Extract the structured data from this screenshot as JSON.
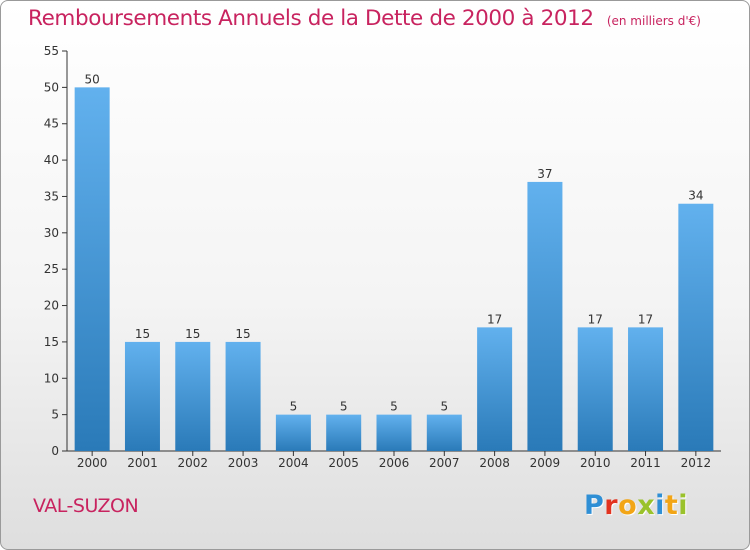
{
  "header": {
    "title": "Remboursements Annuels de la Dette de 2000 à 2012",
    "unit": "(en milliers d'€)"
  },
  "footer": {
    "commune": "VAL-SUZON",
    "logo_letters": [
      {
        "char": "P",
        "color": "#2f8fd5"
      },
      {
        "char": "r",
        "color": "#e2331f"
      },
      {
        "char": "o",
        "color": "#f2a516"
      },
      {
        "char": "x",
        "color": "#9ac22b"
      },
      {
        "char": "i",
        "color": "#2f8fd5"
      },
      {
        "char": "t",
        "color": "#f2a516"
      },
      {
        "char": "i",
        "color": "#9ac22b"
      }
    ]
  },
  "colors": {
    "bar_top": "#62b1ee",
    "bar_bottom": "#2a7ab8",
    "title": "#c8235f",
    "axis": "#333333"
  },
  "chart_data": {
    "type": "bar",
    "categories": [
      "2000",
      "2001",
      "2002",
      "2003",
      "2004",
      "2005",
      "2006",
      "2007",
      "2008",
      "2009",
      "2010",
      "2011",
      "2012"
    ],
    "values": [
      50,
      15,
      15,
      15,
      5,
      5,
      5,
      5,
      17,
      37,
      17,
      17,
      34
    ],
    "ylim": [
      0,
      55
    ],
    "yticks": [
      0,
      5,
      10,
      15,
      20,
      25,
      30,
      35,
      40,
      45,
      50,
      55
    ],
    "grid": false,
    "legend": "none",
    "data_labels": true
  }
}
